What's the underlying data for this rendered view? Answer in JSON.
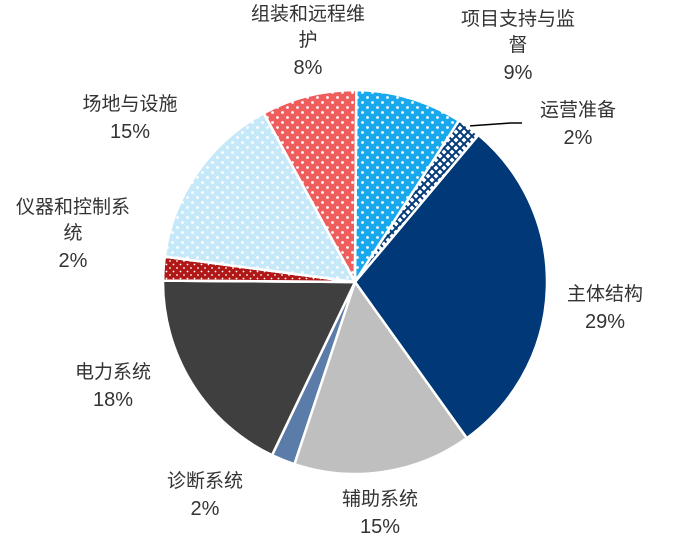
{
  "chart_data": {
    "type": "pie",
    "title": "",
    "slices": [
      {
        "label": "主体结构",
        "label_lines": [
          "主体结构"
        ],
        "value": 29,
        "pct_label": "29%",
        "color": "#003878",
        "pattern": "solid"
      },
      {
        "label": "辅助系统",
        "label_lines": [
          "辅助系统"
        ],
        "value": 15,
        "pct_label": "15%",
        "color": "#bfbfbf",
        "pattern": "solid"
      },
      {
        "label": "诊断系统",
        "label_lines": [
          "诊断系统"
        ],
        "value": 2,
        "pct_label": "2%",
        "color": "#5b7ba8",
        "pattern": "solid"
      },
      {
        "label": "电力系统",
        "label_lines": [
          "电力系统"
        ],
        "value": 18,
        "pct_label": "18%",
        "color": "#3f3f3f",
        "pattern": "solid"
      },
      {
        "label": "仪器和控制系统",
        "label_lines": [
          "仪器和控制系",
          "统"
        ],
        "value": 2,
        "pct_label": "2%",
        "color": "#b01818",
        "pattern": "dots-small"
      },
      {
        "label": "场地与设施",
        "label_lines": [
          "场地与设施"
        ],
        "value": 15,
        "pct_label": "15%",
        "color": "#c6e9fa",
        "pattern": "dots-white"
      },
      {
        "label": "组装和远程维护",
        "label_lines": [
          "组装和远程维",
          "护"
        ],
        "value": 8,
        "pct_label": "8%",
        "color": "#ef5d5d",
        "pattern": "dots-white"
      },
      {
        "label": "项目支持与监督",
        "label_lines": [
          "项目支持与监",
          "督"
        ],
        "value": 9,
        "pct_label": "9%",
        "color": "#18a8ee",
        "pattern": "dots-white"
      },
      {
        "label": "运营准备",
        "label_lines": [
          "运营准备"
        ],
        "value": 2,
        "pct_label": "2%",
        "color": "#003878",
        "pattern": "crosshatch"
      }
    ],
    "start_angle_deg": 40,
    "direction": "clockwise",
    "legend": "none"
  }
}
